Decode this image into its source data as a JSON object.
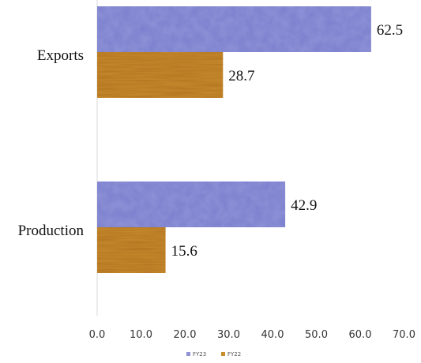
{
  "chart_data": {
    "type": "bar",
    "orientation": "horizontal",
    "categories": [
      "Exports",
      "Production"
    ],
    "series": [
      {
        "name": "FY23",
        "values": [
          62.5,
          42.9
        ],
        "color": "#8f93d6"
      },
      {
        "name": "FY22",
        "values": [
          28.7,
          15.6
        ],
        "color": "#c98d2f"
      }
    ],
    "data_labels": [
      "62.5",
      "28.7",
      "42.9",
      "15.6"
    ],
    "xlim": [
      0,
      70
    ],
    "xticks": [
      "0.0",
      "10.0",
      "20.0",
      "30.0",
      "40.0",
      "50.0",
      "60.0",
      "70.0"
    ],
    "grid": false,
    "legend_position": "bottom"
  }
}
